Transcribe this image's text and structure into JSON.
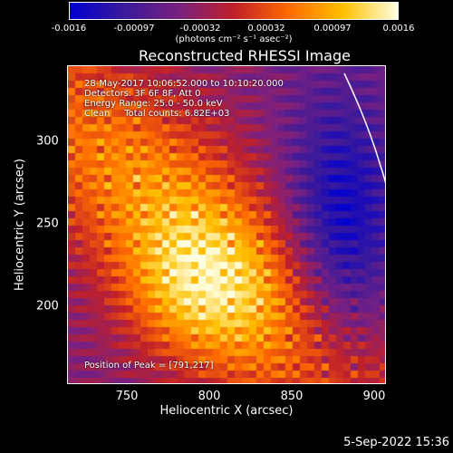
{
  "colorbar": {
    "min": -0.0016,
    "max": 0.0016,
    "tick_labels": [
      "-0.0016",
      "-0.00097",
      "-0.00032",
      "0.00032",
      "0.00097",
      "0.0016"
    ],
    "units_label": "(photons cm⁻² s⁻¹ asec⁻²)",
    "colors": [
      "#0000d0",
      "#3b1a9a",
      "#7a2080",
      "#c0202a",
      "#ff6a00",
      "#ffc000",
      "#ffffe0"
    ]
  },
  "chart_data": {
    "type": "heatmap",
    "title": "Reconstructed RHESSI Image",
    "xlabel": "Heliocentric X (arcsec)",
    "ylabel": "Heliocentric Y (arcsec)",
    "xlim": [
      715,
      908
    ],
    "ylim": [
      160,
      353
    ],
    "xticks": [
      "750",
      "800",
      "850",
      "900"
    ],
    "yticks": [
      "200",
      "250",
      "300"
    ],
    "annotations": [
      "28-May-2017 10:06:52.000 to 10:10:20.000",
      "Detectors: 3F 6F 8F, Att 0",
      "Energy Range: 25.0 - 50.0 keV",
      "Clean     Total counts: 6.82E+03"
    ],
    "peak_label": "Position of Peak = [791,217]",
    "peak_position": [
      791,
      217
    ],
    "limb_color": "#ffffff"
  },
  "footer": {
    "date": "5-Sep-2022 15:36"
  }
}
